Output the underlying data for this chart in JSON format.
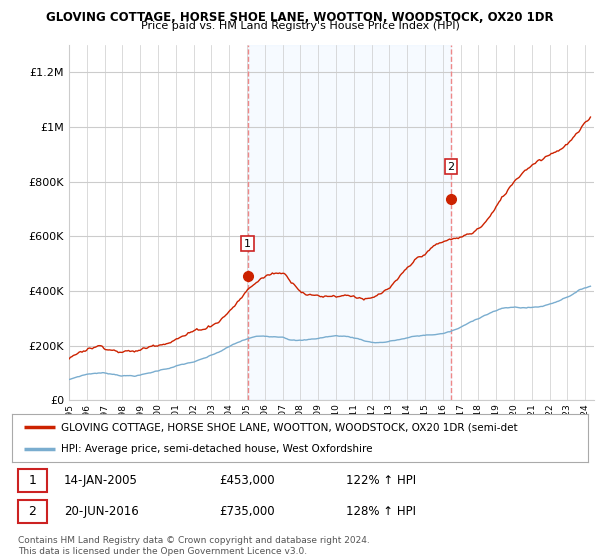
{
  "title": "GLOVING COTTAGE, HORSE SHOE LANE, WOOTTON, WOODSTOCK, OX20 1DR",
  "subtitle": "Price paid vs. HM Land Registry's House Price Index (HPI)",
  "ylabel_ticks": [
    "£0",
    "£200K",
    "£400K",
    "£600K",
    "£800K",
    "£1M",
    "£1.2M"
  ],
  "ytick_values": [
    0,
    200000,
    400000,
    600000,
    800000,
    1000000,
    1200000
  ],
  "ylim": [
    0,
    1300000
  ],
  "xlim_start": 1995.0,
  "xlim_end": 2024.5,
  "hpi_color": "#7aadcf",
  "price_color": "#cc2200",
  "vline_color": "#ee8888",
  "shade_color": "#ddeeff",
  "sale1_x": 2005.04,
  "sale1_y": 453000,
  "sale2_x": 2016.47,
  "sale2_y": 735000,
  "legend_line1": "GLOVING COTTAGE, HORSE SHOE LANE, WOOTTON, WOODSTOCK, OX20 1DR (semi-det",
  "legend_line2": "HPI: Average price, semi-detached house, West Oxfordshire",
  "footnote": "Contains HM Land Registry data © Crown copyright and database right 2024.\nThis data is licensed under the Open Government Licence v3.0.",
  "bg_color": "#ffffff",
  "grid_color": "#cccccc"
}
